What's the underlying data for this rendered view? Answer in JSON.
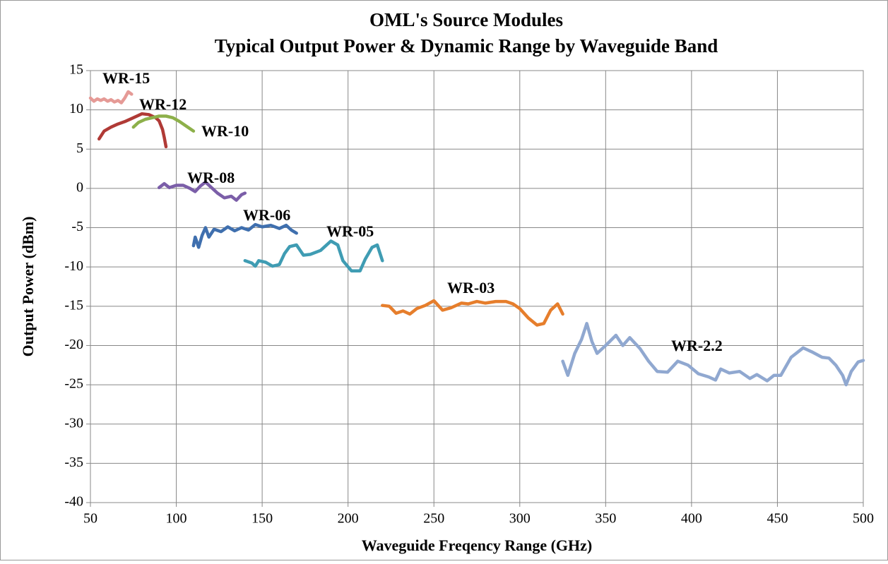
{
  "chart_data": {
    "type": "line",
    "title": "OML's Source Modules",
    "subtitle": "Typical Output Power & Dynamic Range by Waveguide Band",
    "x_label": "Waveguide Freqency Range (GHz)",
    "y_label": "Output Power (dBm)",
    "xlim": [
      50,
      500
    ],
    "xticks": [
      50,
      100,
      150,
      200,
      250,
      300,
      350,
      400,
      450,
      500
    ],
    "ylim": [
      -40,
      15
    ],
    "yticks": [
      -40,
      -35,
      -30,
      -25,
      -20,
      -15,
      -10,
      -5,
      0,
      5,
      10,
      15
    ],
    "grid": true,
    "series": [
      {
        "name": "WR-15",
        "color": "#e59a96",
        "x": [
          50,
          52,
          54,
          56,
          58,
          60,
          62,
          64,
          66,
          68,
          70,
          72,
          74
        ],
        "values": [
          11.5,
          11.1,
          11.4,
          11.2,
          11.4,
          11.1,
          11.3,
          11.0,
          11.2,
          10.9,
          11.5,
          12.3,
          12.0
        ]
      },
      {
        "name": "WR-12",
        "color": "#b03a36",
        "x": [
          55,
          58,
          62,
          66,
          70,
          74,
          78,
          80,
          84,
          88,
          90,
          92,
          93,
          94
        ],
        "values": [
          6.3,
          7.3,
          7.8,
          8.2,
          8.5,
          8.9,
          9.3,
          9.5,
          9.4,
          9.0,
          8.6,
          7.5,
          6.5,
          5.3
        ]
      },
      {
        "name": "WR-10",
        "color": "#8db04a",
        "x": [
          75,
          78,
          82,
          86,
          90,
          94,
          98,
          102,
          106,
          110
        ],
        "values": [
          7.8,
          8.4,
          8.8,
          9.0,
          9.2,
          9.2,
          9.0,
          8.5,
          7.9,
          7.3
        ]
      },
      {
        "name": "WR-08",
        "color": "#7b5ea8",
        "x": [
          90,
          93,
          96,
          100,
          104,
          108,
          111,
          114,
          117,
          120,
          124,
          128,
          132,
          135,
          138,
          140
        ],
        "values": [
          0.1,
          0.6,
          0.1,
          0.4,
          0.4,
          0.0,
          -0.4,
          0.3,
          0.8,
          0.2,
          -0.6,
          -1.2,
          -1.0,
          -1.5,
          -0.8,
          -0.6
        ]
      },
      {
        "name": "WR-06",
        "color": "#3f6fae",
        "x": [
          110,
          111,
          113,
          115,
          117,
          119,
          122,
          126,
          130,
          134,
          138,
          142,
          146,
          150,
          155,
          160,
          164,
          167,
          170
        ],
        "values": [
          -7.3,
          -6.2,
          -7.5,
          -6.0,
          -5.0,
          -6.2,
          -5.2,
          -5.5,
          -4.9,
          -5.4,
          -5.0,
          -5.3,
          -4.6,
          -4.9,
          -4.7,
          -5.1,
          -4.7,
          -5.3,
          -5.7
        ]
      },
      {
        "name": "WR-05",
        "color": "#3f9cb3",
        "x": [
          140,
          144,
          146,
          148,
          152,
          156,
          160,
          163,
          166,
          170,
          174,
          178,
          184,
          190,
          194,
          197,
          202,
          207,
          210,
          214,
          217,
          220
        ],
        "values": [
          -9.2,
          -9.5,
          -9.9,
          -9.2,
          -9.4,
          -9.9,
          -9.7,
          -8.3,
          -7.4,
          -7.2,
          -8.5,
          -8.4,
          -7.9,
          -6.7,
          -7.2,
          -9.2,
          -10.5,
          -10.5,
          -9.0,
          -7.5,
          -7.2,
          -9.2
        ]
      },
      {
        "name": "WR-03",
        "color": "#e67e2c",
        "x": [
          220,
          224,
          228,
          232,
          236,
          240,
          245,
          250,
          255,
          260,
          266,
          270,
          275,
          280,
          286,
          292,
          296,
          300,
          305,
          310,
          314,
          318,
          322,
          325
        ],
        "values": [
          -14.9,
          -15.0,
          -15.9,
          -15.6,
          -16.0,
          -15.3,
          -14.9,
          -14.3,
          -15.5,
          -15.2,
          -14.6,
          -14.7,
          -14.4,
          -14.6,
          -14.4,
          -14.4,
          -14.7,
          -15.3,
          -16.5,
          -17.4,
          -17.2,
          -15.5,
          -14.7,
          -16.0
        ]
      },
      {
        "name": "WR-2.2",
        "color": "#90a8d0",
        "x": [
          325,
          328,
          332,
          336,
          339,
          342,
          345,
          350,
          356,
          360,
          364,
          370,
          375,
          380,
          386,
          392,
          398,
          404,
          410,
          414,
          417,
          422,
          428,
          434,
          438,
          444,
          448,
          452,
          458,
          465,
          470,
          476,
          480,
          484,
          488,
          490,
          493,
          497,
          500
        ],
        "values": [
          -22.0,
          -23.8,
          -21.0,
          -19.2,
          -17.2,
          -19.5,
          -21.0,
          -20.0,
          -18.7,
          -20.0,
          -19.0,
          -20.4,
          -22.0,
          -23.3,
          -23.4,
          -22.0,
          -22.5,
          -23.6,
          -24.0,
          -24.4,
          -23.0,
          -23.5,
          -23.3,
          -24.2,
          -23.7,
          -24.5,
          -23.8,
          -23.8,
          -21.5,
          -20.3,
          -20.8,
          -21.5,
          -21.6,
          -22.5,
          -23.8,
          -25.0,
          -23.3,
          -22.1,
          -21.9
        ]
      }
    ]
  }
}
